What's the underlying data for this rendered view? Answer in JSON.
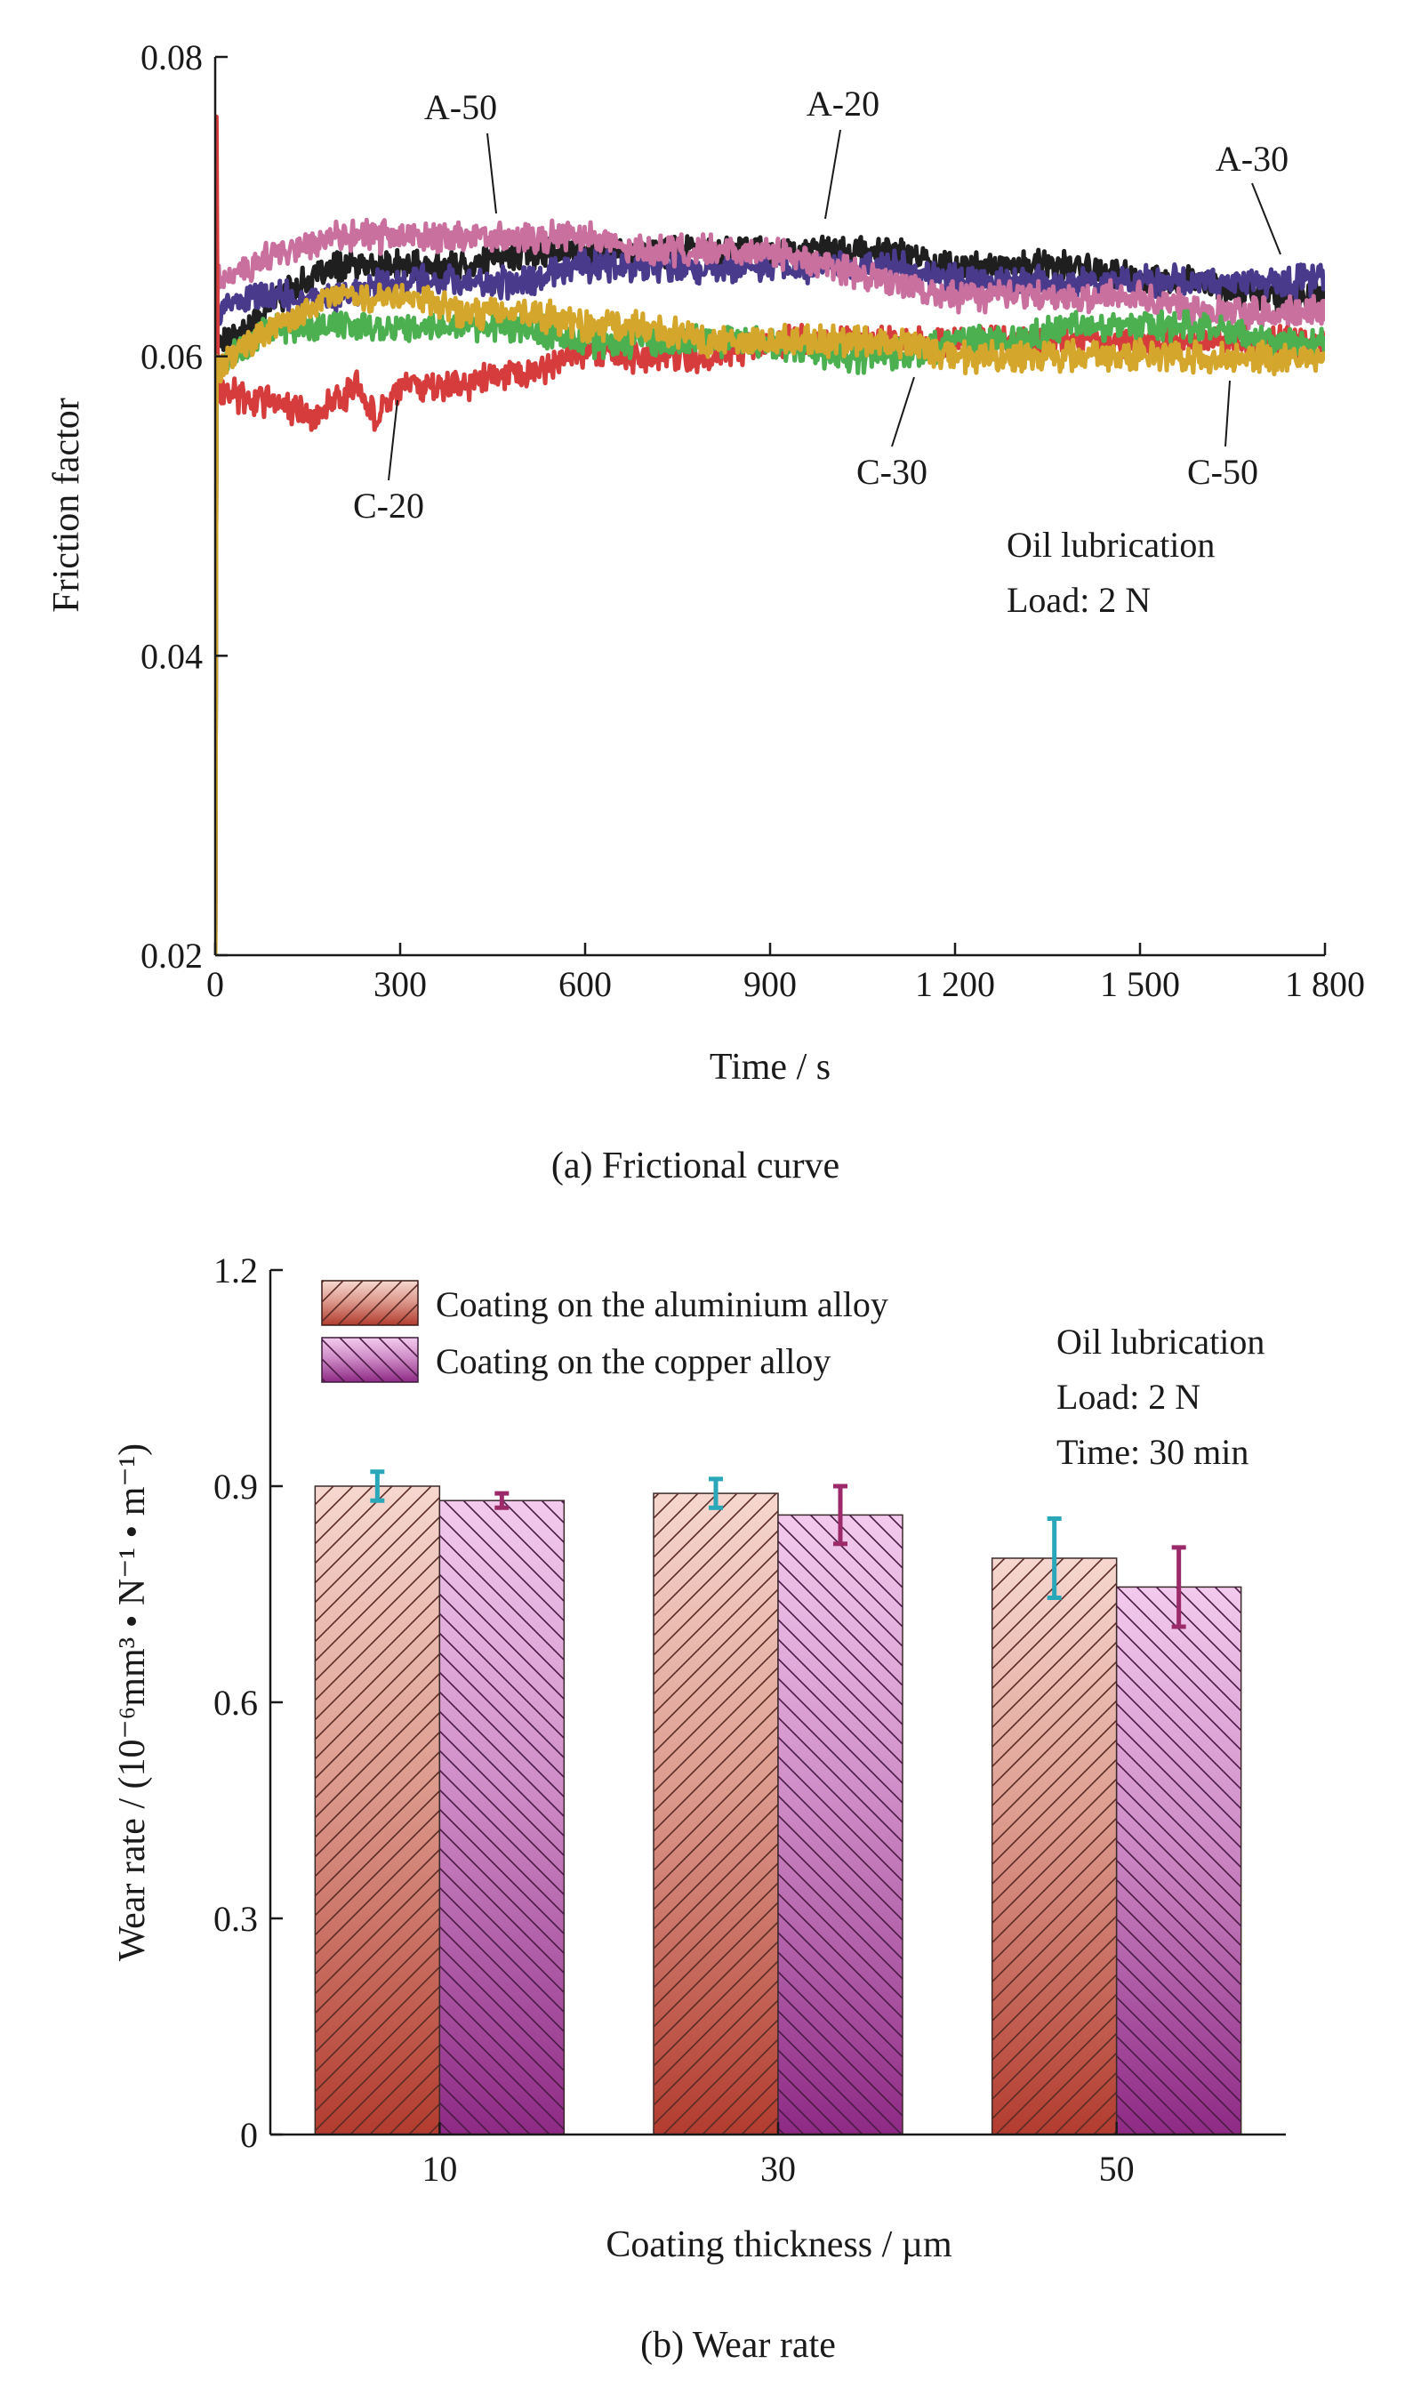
{
  "charts": {
    "a": {
      "caption": "(a) Frictional curve",
      "notes": [
        "Oil lubrication",
        "Load: 2 N"
      ]
    },
    "b": {
      "caption": "(b) Wear rate",
      "notes": [
        "Oil lubrication",
        "Load: 2 N",
        "Time: 30 min"
      ]
    }
  },
  "chart_data": [
    {
      "type": "line",
      "title": "(a) Frictional curve",
      "xlabel": "Time / s",
      "ylabel": "Friction factor",
      "xlim": [
        0,
        1800
      ],
      "ylim": [
        0.02,
        0.08
      ],
      "xticks": [
        "0",
        "300",
        "600",
        "900",
        "1 200",
        "1 500",
        "1 800"
      ],
      "xtick_values": [
        0,
        300,
        600,
        900,
        1200,
        1500,
        1800
      ],
      "yticks": [
        "0.02",
        "0.04",
        "0.06",
        "0.08"
      ],
      "ytick_values": [
        0.02,
        0.04,
        0.06,
        0.08
      ],
      "series": [
        {
          "name": "A-20",
          "color": "#1f1f1f",
          "x": [
            0,
            60,
            100,
            150,
            200,
            300,
            400,
            500,
            600,
            700,
            800,
            900,
            1000,
            1100,
            1200,
            1300,
            1400,
            1500,
            1600,
            1700,
            1800
          ],
          "y": [
            0.061,
            0.062,
            0.064,
            0.065,
            0.066,
            0.066,
            0.066,
            0.067,
            0.067,
            0.067,
            0.067,
            0.067,
            0.067,
            0.067,
            0.066,
            0.066,
            0.066,
            0.065,
            0.065,
            0.064,
            0.064
          ]
        },
        {
          "name": "A-30",
          "color": "#4a3a8c",
          "x": [
            0,
            60,
            100,
            200,
            300,
            400,
            500,
            600,
            700,
            800,
            900,
            1000,
            1100,
            1200,
            1300,
            1400,
            1500,
            1600,
            1700,
            1800
          ],
          "y": [
            0.063,
            0.064,
            0.064,
            0.064,
            0.065,
            0.065,
            0.065,
            0.066,
            0.066,
            0.066,
            0.066,
            0.066,
            0.066,
            0.065,
            0.065,
            0.065,
            0.065,
            0.065,
            0.065,
            0.065
          ]
        },
        {
          "name": "A-50",
          "color": "#c9709f",
          "x": [
            0,
            60,
            100,
            200,
            300,
            400,
            500,
            600,
            700,
            800,
            900,
            1000,
            1100,
            1200,
            1300,
            1400,
            1500,
            1600,
            1700,
            1800
          ],
          "y": [
            0.065,
            0.066,
            0.067,
            0.068,
            0.068,
            0.068,
            0.068,
            0.068,
            0.067,
            0.067,
            0.067,
            0.066,
            0.065,
            0.064,
            0.064,
            0.064,
            0.064,
            0.063,
            0.063,
            0.063
          ]
        },
        {
          "name": "C-20",
          "color": "#d63c3c",
          "x": [
            0,
            60,
            100,
            150,
            200,
            230,
            260,
            300,
            400,
            500,
            600,
            700,
            800,
            900,
            1000,
            1100,
            1200,
            1300,
            1400,
            1500,
            1600,
            1700,
            1800
          ],
          "y": [
            0.058,
            0.057,
            0.057,
            0.056,
            0.057,
            0.058,
            0.056,
            0.058,
            0.058,
            0.059,
            0.06,
            0.06,
            0.06,
            0.061,
            0.061,
            0.061,
            0.061,
            0.061,
            0.061,
            0.061,
            0.061,
            0.061,
            0.061
          ]
        },
        {
          "name": "C-30",
          "color": "#4caf50",
          "x": [
            0,
            60,
            100,
            200,
            300,
            400,
            500,
            600,
            700,
            800,
            900,
            1000,
            1100,
            1200,
            1300,
            1400,
            1500,
            1600,
            1700,
            1800
          ],
          "y": [
            0.059,
            0.061,
            0.062,
            0.062,
            0.062,
            0.062,
            0.062,
            0.061,
            0.061,
            0.061,
            0.061,
            0.06,
            0.06,
            0.061,
            0.061,
            0.062,
            0.062,
            0.062,
            0.061,
            0.061
          ]
        },
        {
          "name": "C-50",
          "color": "#d4a72c",
          "x": [
            0,
            60,
            100,
            200,
            300,
            400,
            500,
            600,
            700,
            800,
            900,
            1000,
            1100,
            1200,
            1300,
            1400,
            1500,
            1600,
            1700,
            1800
          ],
          "y": [
            0.059,
            0.061,
            0.062,
            0.064,
            0.064,
            0.063,
            0.063,
            0.062,
            0.062,
            0.061,
            0.061,
            0.061,
            0.061,
            0.06,
            0.06,
            0.06,
            0.06,
            0.06,
            0.06,
            0.06
          ]
        }
      ]
    },
    {
      "type": "bar",
      "title": "(b) Wear rate",
      "xlabel": "Coating thickness / µm",
      "ylabel": "Wear rate / (10⁻⁶mm³ • N⁻¹ • m⁻¹)",
      "ylim": [
        0,
        1.2
      ],
      "yticks": [
        "0",
        "0.3",
        "0.6",
        "0.9",
        "1.2"
      ],
      "ytick_values": [
        0,
        0.3,
        0.6,
        0.9,
        1.2
      ],
      "categories": [
        "10",
        "30",
        "50"
      ],
      "series": [
        {
          "name": "Coating on the aluminium alloy",
          "color": "#b5473a",
          "error_color": "#2aa7b8",
          "values": [
            0.9,
            0.89,
            0.8
          ],
          "errors": [
            0.02,
            0.02,
            0.055
          ]
        },
        {
          "name": "Coating on the copper alloy",
          "color": "#9c3a8f",
          "error_color": "#9c2a6a",
          "values": [
            0.88,
            0.86,
            0.76
          ],
          "errors": [
            0.01,
            0.04,
            0.055
          ]
        }
      ]
    }
  ]
}
